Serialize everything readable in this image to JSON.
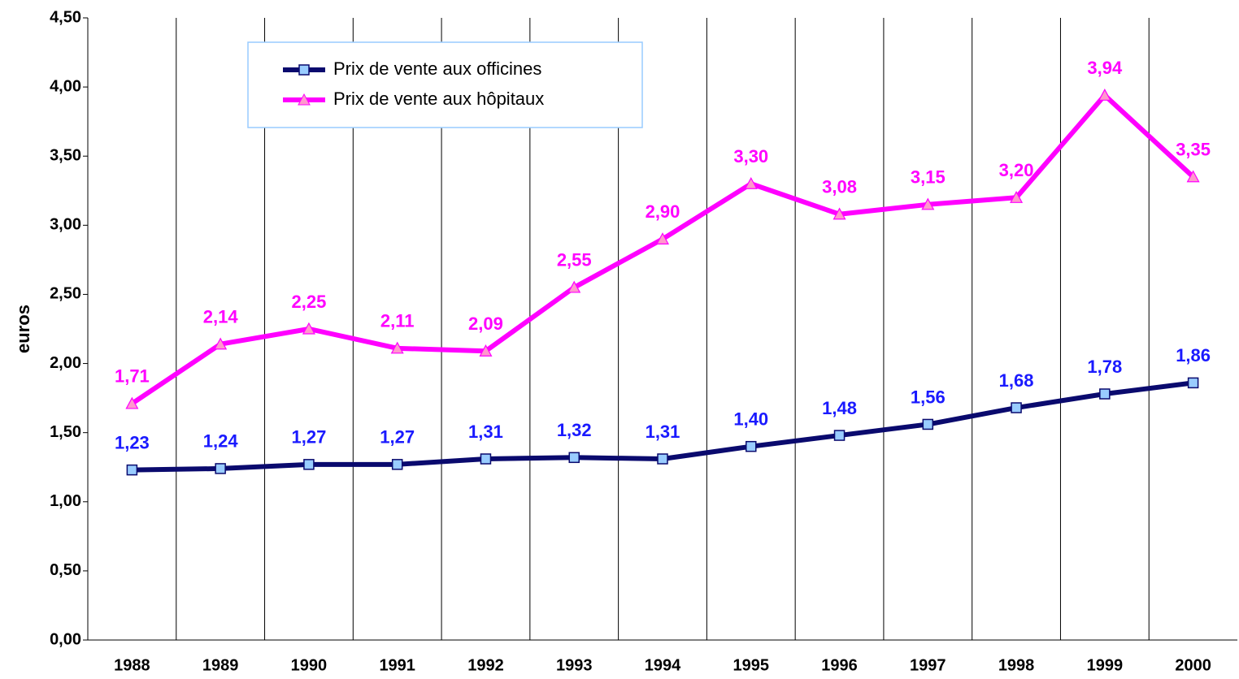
{
  "chart_data": {
    "type": "line",
    "y_label": "euros",
    "categories": [
      "1988",
      "1989",
      "1990",
      "1991",
      "1992",
      "1993",
      "1994",
      "1995",
      "1996",
      "1997",
      "1998",
      "1999",
      "2000"
    ],
    "series": [
      {
        "name": "Prix de vente aux officines",
        "color": "#0a0a6e",
        "marker_color": "#99ccff",
        "label_color": "#1a1aff",
        "values": [
          1.23,
          1.24,
          1.27,
          1.27,
          1.31,
          1.32,
          1.31,
          1.4,
          1.48,
          1.56,
          1.68,
          1.78,
          1.86
        ],
        "value_labels": [
          "1,23",
          "1,24",
          "1,27",
          "1,27",
          "1,31",
          "1,32",
          "1,31",
          "1,40",
          "1,48",
          "1,56",
          "1,68",
          "1,78",
          "1,86"
        ]
      },
      {
        "name": "Prix de vente aux hôpitaux",
        "color": "#ff00ff",
        "marker_color": "#ff99cc",
        "label_color": "#ff00ff",
        "values": [
          1.71,
          2.14,
          2.25,
          2.11,
          2.09,
          2.55,
          2.9,
          3.3,
          3.08,
          3.15,
          3.2,
          3.94,
          3.35
        ],
        "value_labels": [
          "1,71",
          "2,14",
          "2,25",
          "2,11",
          "2,09",
          "2,55",
          "2,90",
          "3,30",
          "3,08",
          "3,15",
          "3,20",
          "3,94",
          "3,35"
        ]
      }
    ],
    "ylim": [
      0,
      4.5
    ],
    "yticks": [
      {
        "value": 0,
        "label": "0,00"
      },
      {
        "value": 0.5,
        "label": "0,50"
      },
      {
        "value": 1,
        "label": "1,00"
      },
      {
        "value": 1.5,
        "label": "1,50"
      },
      {
        "value": 2,
        "label": "2,00"
      },
      {
        "value": 2.5,
        "label": "2,50"
      },
      {
        "value": 3,
        "label": "3,00"
      },
      {
        "value": 3.5,
        "label": "3,50"
      },
      {
        "value": 4,
        "label": "4,00"
      },
      {
        "value": 4.5,
        "label": "4,50"
      }
    ],
    "legend": "top-left"
  }
}
